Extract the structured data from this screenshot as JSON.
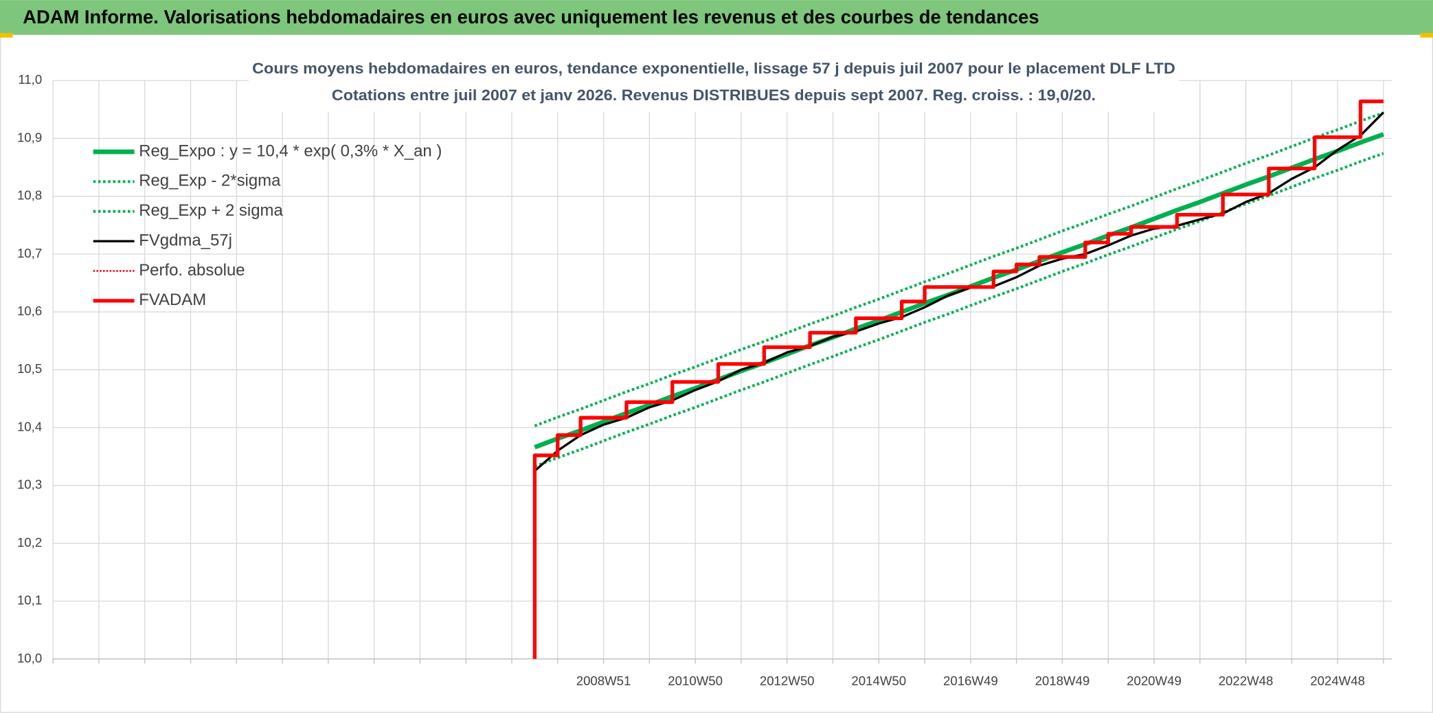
{
  "page_title": "ADAM Informe. Valorisations hebdomadaires en euros avec uniquement les revenus et des courbes de tendances",
  "chart_data": {
    "type": "line",
    "title": "Cours moyens hebdomadaires en euros, tendance exponentielle, lissage 57 j depuis juil 2007 pour le placement DLF LTD",
    "subtitle": "Cotations entre juil 2007 et janv 2026. Revenus DISTRIBUES depuis sept 2007. Reg. croiss. : 19,0/20.",
    "categories": [
      null,
      null,
      null,
      null,
      null,
      null,
      null,
      null,
      null,
      null,
      null,
      null,
      null,
      null,
      null,
      null,
      null,
      null,
      null,
      null,
      null,
      null,
      null,
      null,
      "2008W51",
      null,
      null,
      null,
      "2010W50",
      null,
      null,
      null,
      "2012W50",
      null,
      null,
      null,
      "2014W50",
      null,
      null,
      null,
      "2016W49",
      null,
      null,
      null,
      "2018W49",
      null,
      null,
      null,
      "2020W49",
      null,
      null,
      null,
      "2022W48",
      null,
      null,
      null,
      "2024W48",
      null,
      null
    ],
    "ylim": [
      10.0,
      11.0
    ],
    "yticks": [
      {
        "value": 10.0,
        "label": "10,0"
      },
      {
        "value": 10.1,
        "label": "10,1"
      },
      {
        "value": 10.2,
        "label": "10,2"
      },
      {
        "value": 10.3,
        "label": "10,3"
      },
      {
        "value": 10.4,
        "label": "10,4"
      },
      {
        "value": 10.5,
        "label": "10,5"
      },
      {
        "value": 10.6,
        "label": "10,6"
      },
      {
        "value": 10.7,
        "label": "10,7"
      },
      {
        "value": 10.8,
        "label": "10,8"
      },
      {
        "value": 10.9,
        "label": "10,9"
      },
      {
        "value": 11.0,
        "label": "11,0"
      }
    ],
    "grid": true,
    "legend": "upper left",
    "series": [
      {
        "name": "Reg_Expo : y = 10,4 * exp( 0,3% *  X_an )",
        "color": "#00b050",
        "style": "solid",
        "width": 5,
        "values": [
          null,
          null,
          null,
          null,
          null,
          null,
          null,
          null,
          null,
          null,
          null,
          null,
          null,
          null,
          null,
          null,
          null,
          null,
          null,
          null,
          null,
          10.366,
          10.381,
          10.395,
          10.41,
          10.425,
          10.439,
          10.454,
          10.468,
          10.483,
          10.498,
          10.512,
          10.527,
          10.542,
          10.556,
          10.571,
          10.585,
          10.6,
          10.615,
          10.629,
          10.644,
          10.659,
          10.673,
          10.688,
          10.703,
          10.717,
          10.732,
          10.746,
          10.761,
          10.776,
          10.79,
          10.805,
          10.82,
          10.834,
          10.849,
          10.864,
          10.878,
          10.893,
          10.907
        ]
      },
      {
        "name": "Reg_Exp - 2*sigma",
        "color": "#00b050",
        "style": "dotted",
        "width": 3,
        "values": [
          null,
          null,
          null,
          null,
          null,
          null,
          null,
          null,
          null,
          null,
          null,
          null,
          null,
          null,
          null,
          null,
          null,
          null,
          null,
          null,
          null,
          10.333,
          10.348,
          10.362,
          10.377,
          10.392,
          10.406,
          10.421,
          10.435,
          10.45,
          10.465,
          10.479,
          10.494,
          10.509,
          10.523,
          10.538,
          10.552,
          10.567,
          10.582,
          10.596,
          10.611,
          10.626,
          10.64,
          10.655,
          10.67,
          10.684,
          10.699,
          10.713,
          10.728,
          10.743,
          10.757,
          10.772,
          10.787,
          10.801,
          10.816,
          10.831,
          10.845,
          10.86,
          10.874
        ]
      },
      {
        "name": "Reg_Exp + 2 sigma",
        "color": "#00b050",
        "style": "dotted",
        "width": 3,
        "values": [
          null,
          null,
          null,
          null,
          null,
          null,
          null,
          null,
          null,
          null,
          null,
          null,
          null,
          null,
          null,
          null,
          null,
          null,
          null,
          null,
          null,
          10.403,
          10.418,
          10.432,
          10.447,
          10.462,
          10.476,
          10.491,
          10.505,
          10.52,
          10.535,
          10.549,
          10.564,
          10.579,
          10.593,
          10.608,
          10.622,
          10.637,
          10.652,
          10.666,
          10.681,
          10.696,
          10.71,
          10.725,
          10.74,
          10.754,
          10.769,
          10.783,
          10.798,
          10.813,
          10.827,
          10.842,
          10.857,
          10.871,
          10.886,
          10.901,
          10.915,
          10.93,
          10.944
        ]
      },
      {
        "name": "FVgdma_57j",
        "color": "#000000",
        "style": "solid",
        "width": 2.5,
        "values": [
          null,
          null,
          null,
          null,
          null,
          null,
          null,
          null,
          null,
          null,
          null,
          null,
          null,
          null,
          null,
          null,
          null,
          null,
          null,
          null,
          null,
          10.325,
          10.36,
          10.387,
          10.405,
          10.417,
          10.435,
          10.447,
          10.465,
          10.48,
          10.5,
          10.512,
          10.53,
          10.541,
          10.557,
          10.566,
          10.58,
          10.591,
          10.608,
          10.628,
          10.642,
          10.644,
          10.66,
          10.68,
          10.692,
          10.7,
          10.715,
          10.732,
          10.744,
          10.749,
          10.76,
          10.77,
          10.79,
          10.805,
          10.83,
          10.85,
          10.88,
          10.905,
          10.945
        ]
      },
      {
        "name": "Perfo. absolue",
        "color": "#ff0000",
        "style": "dotted",
        "width": 2,
        "values": [
          null,
          null,
          null,
          null,
          null,
          null,
          null,
          null,
          null,
          null,
          null,
          null,
          null,
          null,
          null,
          null,
          null,
          null,
          null,
          null,
          null,
          null,
          null,
          null,
          null,
          null,
          null,
          null,
          null,
          null,
          null,
          null,
          null,
          null,
          null,
          null,
          null,
          null,
          null,
          null,
          null,
          null,
          null,
          null,
          null,
          null,
          null,
          null,
          null,
          null,
          null,
          null,
          null,
          null,
          null,
          null,
          null,
          null,
          null
        ]
      },
      {
        "name": "FVADAM",
        "color": "#ff0000",
        "style": "solid",
        "width": 4,
        "shape": "step",
        "values": [
          null,
          null,
          null,
          null,
          null,
          null,
          null,
          null,
          null,
          null,
          null,
          null,
          null,
          null,
          null,
          null,
          null,
          null,
          null,
          null,
          null,
          10.0,
          10.352,
          10.387,
          10.417,
          10.417,
          10.444,
          10.444,
          10.479,
          10.479,
          10.51,
          10.51,
          10.539,
          10.539,
          10.564,
          10.564,
          10.589,
          10.589,
          10.618,
          10.643,
          10.643,
          10.643,
          10.67,
          10.682,
          10.695,
          10.695,
          10.72,
          10.735,
          10.747,
          10.747,
          10.768,
          10.768,
          10.803,
          10.803,
          10.848,
          10.848,
          10.902,
          10.902,
          10.964
        ]
      }
    ]
  }
}
